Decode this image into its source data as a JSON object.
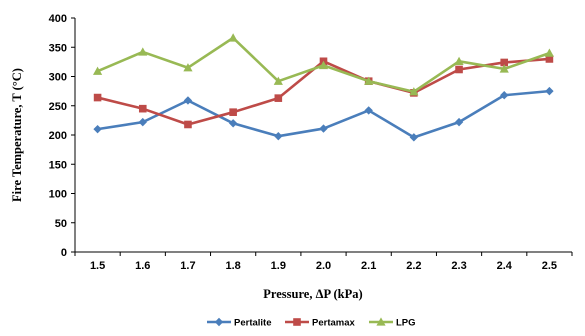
{
  "chart_data": {
    "type": "line",
    "title": "",
    "xlabel": "Pressure, ΔP (kPa)",
    "ylabel": "Fire Temperature, T (°C)",
    "categories": [
      "1.5",
      "1.6",
      "1.7",
      "1.8",
      "1.9",
      "2.0",
      "2.1",
      "2.2",
      "2.3",
      "2.4",
      "2.5"
    ],
    "ylim": [
      0,
      400
    ],
    "yticks": [
      0,
      50,
      100,
      150,
      200,
      250,
      300,
      350,
      400
    ],
    "grid": false,
    "legend_position": "bottom",
    "series": [
      {
        "name": "Pertalite",
        "color": "#4a7ebb",
        "marker": "diamond",
        "values": [
          210,
          222,
          259,
          220,
          198,
          211,
          242,
          196,
          222,
          268,
          275
        ]
      },
      {
        "name": "Pertamax",
        "color": "#be4b48",
        "marker": "square",
        "values": [
          264,
          245,
          218,
          239,
          263,
          326,
          292,
          272,
          312,
          324,
          330
        ]
      },
      {
        "name": "LPG",
        "color": "#98b954",
        "marker": "triangle",
        "values": [
          309,
          342,
          315,
          366,
          292,
          319,
          292,
          274,
          326,
          313,
          340
        ]
      }
    ]
  }
}
